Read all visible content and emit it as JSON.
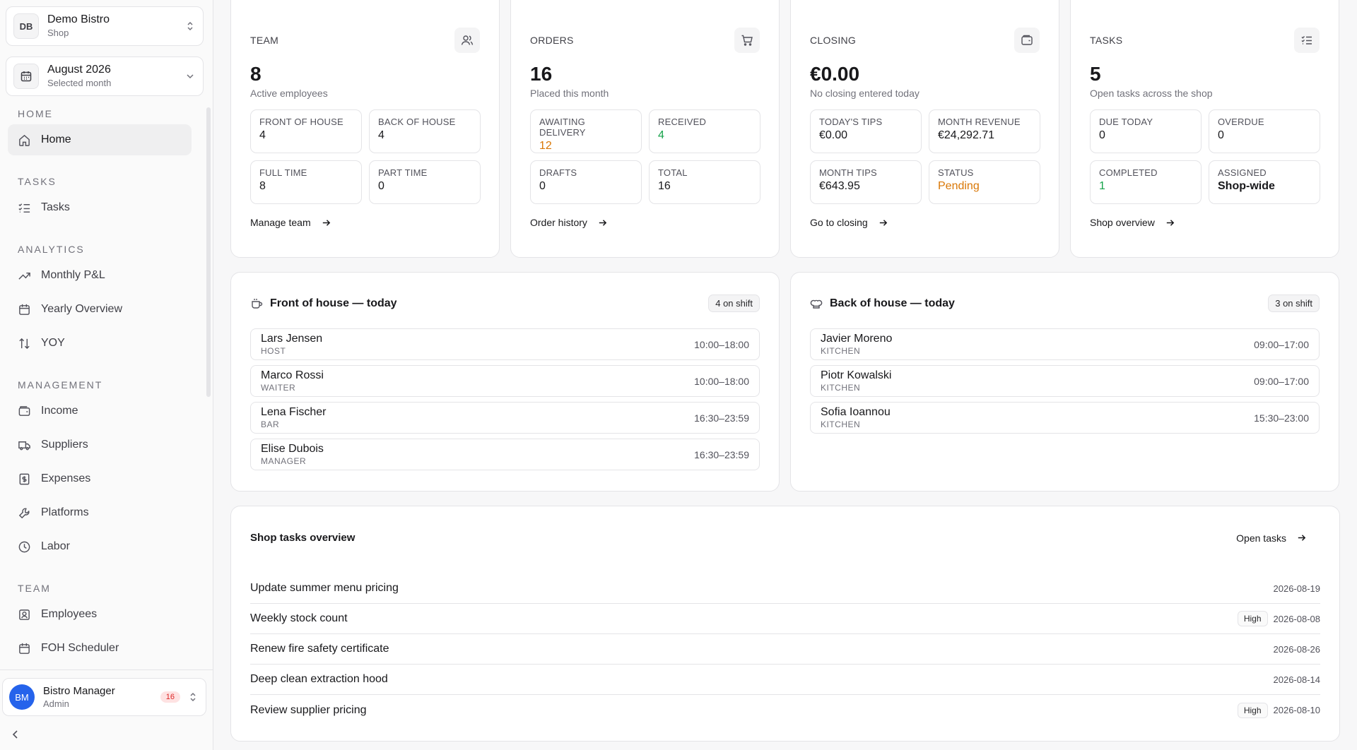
{
  "sidebar": {
    "shop": {
      "badge": "DB",
      "name": "Demo Bistro",
      "type": "Shop"
    },
    "month": {
      "name": "August 2026",
      "sub": "Selected month"
    },
    "groups": {
      "home": "HOME",
      "tasks": "TASKS",
      "analytics": "ANALYTICS",
      "management": "MANAGEMENT",
      "team": "TEAM"
    },
    "items": {
      "home": "Home",
      "tasks": "Tasks",
      "monthly_pl": "Monthly P&L",
      "yearly": "Yearly Overview",
      "yoy": "YOY",
      "income": "Income",
      "suppliers": "Suppliers",
      "expenses": "Expenses",
      "platforms": "Platforms",
      "labor": "Labor",
      "employees": "Employees",
      "foh_scheduler": "FOH Scheduler"
    },
    "user": {
      "initials": "BM",
      "name": "Bistro Manager",
      "role": "Admin",
      "badge": "16"
    }
  },
  "cards": {
    "team": {
      "label": "TEAM",
      "value": "8",
      "desc": "Active employees",
      "metrics": [
        {
          "label": "FRONT OF HOUSE",
          "value": "4"
        },
        {
          "label": "BACK OF HOUSE",
          "value": "4"
        },
        {
          "label": "FULL TIME",
          "value": "8"
        },
        {
          "label": "PART TIME",
          "value": "0"
        }
      ],
      "link": "Manage team"
    },
    "orders": {
      "label": "ORDERS",
      "value": "16",
      "desc": "Placed this month",
      "metrics": [
        {
          "label": "AWAITING DELIVERY",
          "value": "12"
        },
        {
          "label": "RECEIVED",
          "value": "4"
        },
        {
          "label": "DRAFTS",
          "value": "0"
        },
        {
          "label": "TOTAL",
          "value": "16"
        }
      ],
      "link": "Order history"
    },
    "closing": {
      "label": "CLOSING",
      "value": "€0.00",
      "desc": "No closing entered today",
      "metrics": [
        {
          "label": "TODAY'S TIPS",
          "value": "€0.00"
        },
        {
          "label": "MONTH REVENUE",
          "value": "€24,292.71"
        },
        {
          "label": "MONTH TIPS",
          "value": "€643.95"
        },
        {
          "label": "STATUS",
          "value": "Pending"
        }
      ],
      "link": "Go to closing"
    },
    "tasks": {
      "label": "TASKS",
      "value": "5",
      "desc": "Open tasks across the shop",
      "metrics": [
        {
          "label": "DUE TODAY",
          "value": "0"
        },
        {
          "label": "OVERDUE",
          "value": "0"
        },
        {
          "label": "COMPLETED",
          "value": "1"
        },
        {
          "label": "ASSIGNED",
          "value": "Shop-wide"
        }
      ],
      "link": "Shop overview"
    }
  },
  "foh": {
    "title": "Front of house — today",
    "count": "4 on shift",
    "rows": [
      {
        "name": "Lars Jensen",
        "role": "HOST",
        "time": "10:00–18:00"
      },
      {
        "name": "Marco Rossi",
        "role": "WAITER",
        "time": "10:00–18:00"
      },
      {
        "name": "Lena Fischer",
        "role": "BAR",
        "time": "16:30–23:59"
      },
      {
        "name": "Elise Dubois",
        "role": "MANAGER",
        "time": "16:30–23:59"
      }
    ]
  },
  "boh": {
    "title": "Back of house — today",
    "count": "3 on shift",
    "rows": [
      {
        "name": "Javier Moreno",
        "role": "KITCHEN",
        "time": "09:00–17:00"
      },
      {
        "name": "Piotr Kowalski",
        "role": "KITCHEN",
        "time": "09:00–17:00"
      },
      {
        "name": "Sofia Ioannou",
        "role": "KITCHEN",
        "time": "15:30–23:00"
      }
    ]
  },
  "shop_tasks": {
    "title": "Shop tasks overview",
    "open_link": "Open tasks",
    "items": [
      {
        "name": "Update summer menu pricing",
        "priority": "",
        "date": "2026-08-19"
      },
      {
        "name": "Weekly stock count",
        "priority": "High",
        "date": "2026-08-08"
      },
      {
        "name": "Renew fire safety certificate",
        "priority": "",
        "date": "2026-08-26"
      },
      {
        "name": "Deep clean extraction hood",
        "priority": "",
        "date": "2026-08-14"
      },
      {
        "name": "Review supplier pricing",
        "priority": "High",
        "date": "2026-08-10"
      }
    ]
  },
  "colors": {
    "accent": "#2563eb",
    "amber": "#d97706",
    "green": "#16a34a",
    "badge_red": "#dc2626"
  }
}
